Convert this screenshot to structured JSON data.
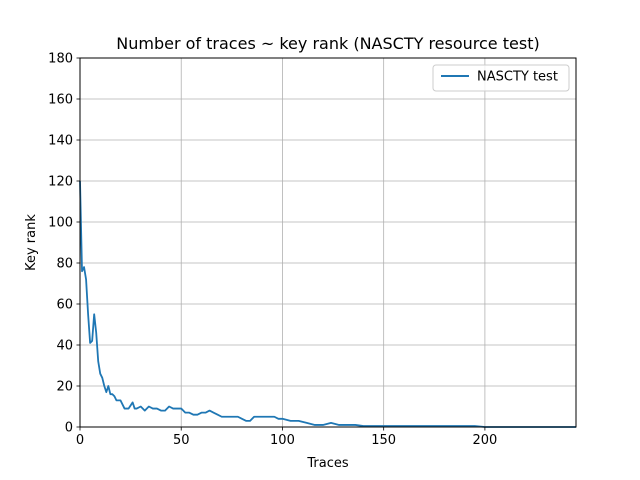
{
  "chart_data": {
    "type": "line",
    "title": "Number of traces ~ key rank (NASCTY resource test)",
    "xlabel": "Traces",
    "ylabel": "Key rank",
    "xlim": [
      0,
      245
    ],
    "ylim": [
      0,
      180
    ],
    "xticks": [
      0,
      50,
      100,
      150,
      200
    ],
    "yticks": [
      0,
      20,
      40,
      60,
      80,
      100,
      120,
      140,
      160,
      180
    ],
    "grid": true,
    "legend_position": "top-right",
    "series": [
      {
        "name": "NASCTY test",
        "color": "#1f77b4",
        "x": [
          0,
          1,
          2,
          3,
          4,
          5,
          6,
          7,
          8,
          9,
          10,
          11,
          12,
          13,
          14,
          15,
          16,
          17,
          18,
          19,
          20,
          22,
          24,
          26,
          27,
          28,
          30,
          32,
          34,
          36,
          38,
          40,
          42,
          44,
          46,
          48,
          50,
          52,
          54,
          56,
          58,
          60,
          62,
          64,
          66,
          68,
          70,
          72,
          74,
          76,
          78,
          80,
          82,
          84,
          86,
          88,
          90,
          92,
          94,
          96,
          98,
          100,
          104,
          108,
          112,
          116,
          120,
          124,
          128,
          132,
          136,
          140,
          145,
          150,
          160,
          170,
          180,
          190,
          195,
          200,
          210,
          220,
          230,
          245
        ],
        "values": [
          120,
          76,
          78,
          72,
          55,
          41,
          42,
          55,
          46,
          32,
          26,
          24,
          20,
          17,
          20,
          16,
          16,
          15,
          13,
          13,
          13,
          9,
          9,
          12,
          9,
          9,
          10,
          8,
          10,
          9,
          9,
          8,
          8,
          10,
          9,
          9,
          9,
          7,
          7,
          6,
          6,
          7,
          7,
          8,
          7,
          6,
          5,
          5,
          5,
          5,
          5,
          4,
          3,
          3,
          5,
          5,
          5,
          5,
          5,
          5,
          4,
          4,
          3,
          3,
          2,
          1,
          1,
          2,
          1,
          1,
          1,
          0.5,
          0.5,
          0.5,
          0.5,
          0.5,
          0.5,
          0.5,
          0.5,
          0,
          0,
          0,
          0,
          0
        ]
      }
    ]
  }
}
